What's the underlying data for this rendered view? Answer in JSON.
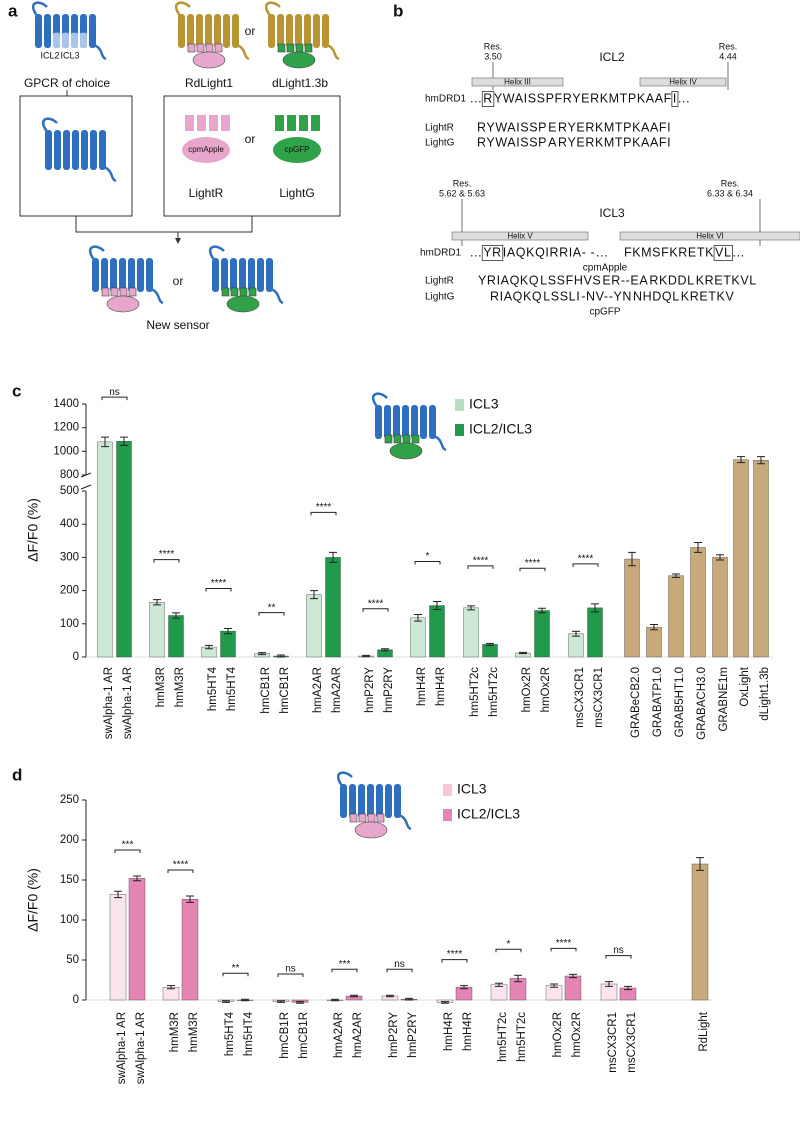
{
  "panel_a": {
    "label": "a",
    "icl2": "ICL2",
    "icl3": "ICL3",
    "gpcr": "GPCR of choice",
    "rdlight": "RdLight1",
    "or": "or",
    "dlight": "dLight1.3b",
    "cpmapple": "cpmApple",
    "cpgfp": "cpGFP",
    "lightr": "LightR",
    "lightg": "LightG",
    "new_sensor": "New sensor"
  },
  "panel_b": {
    "label": "b",
    "icl2": {
      "title": "ICL2",
      "res_left": [
        "Res.",
        "3.50"
      ],
      "helix_left": "Helix III",
      "helix_right": "Helix IV",
      "res_right": [
        "Res.",
        "4.44"
      ],
      "rows": [
        {
          "name": "hmDRD1",
          "segments": [
            {
              "text": "...",
              "color": "#111"
            },
            {
              "text": "R",
              "color": "#111",
              "boxed": true
            },
            {
              "text": "YWAISSPFRYERKMTPKAAF",
              "color": "#111"
            },
            {
              "text": "I",
              "color": "#111",
              "boxed": true
            },
            {
              "text": "...",
              "color": "#111"
            }
          ]
        },
        {
          "name": "LightR",
          "segments": [
            {
              "text": "RYWAISSP",
              "color": "#111"
            },
            {
              "text": "E",
              "color": "#f0a020"
            },
            {
              "text": "RYERKMTPKAAFI",
              "color": "#111"
            }
          ]
        },
        {
          "name": "LightG",
          "segments": [
            {
              "text": "RYWAISSP",
              "color": "#111"
            },
            {
              "text": "A",
              "color": "#f0a020"
            },
            {
              "text": "RYERKMTPKAAFI",
              "color": "#111"
            }
          ]
        }
      ]
    },
    "icl3": {
      "title": "ICL3",
      "res_left": [
        "Res.",
        "5.62 & 5.63"
      ],
      "helix_left": "Helix V",
      "helix_right": "Helix VI",
      "res_right": [
        "Res.",
        "6.33 & 6.34"
      ],
      "insert_r": "cpmApple",
      "insert_g": "cpGFP",
      "rows": [
        {
          "name": "hmDRD1",
          "segments": [
            {
              "text": "...",
              "color": "#111"
            },
            {
              "text": "YR",
              "color": "#111",
              "boxed": true
            },
            {
              "text": "IAQKQIRRIA- -",
              "color": "#111"
            },
            {
              "text": "...",
              "color": "#111"
            },
            {
              "text": "FKMSFKRETK",
              "color": "#111"
            },
            {
              "text": "VL",
              "color": "#111",
              "boxed": true
            },
            {
              "text": "...",
              "color": "#111"
            }
          ]
        },
        {
          "name": "LightR",
          "segments": [
            {
              "text": "YRIAQKQ",
              "color": "#111"
            },
            {
              "text": "LSSFHVS",
              "color": "#f0a020"
            },
            {
              "text": "ER--EA",
              "color": "#e05aa0"
            },
            {
              "text": "RKDDL",
              "color": "#f0a020"
            },
            {
              "text": "KRETKVL",
              "color": "#111"
            }
          ]
        },
        {
          "name": "LightG",
          "segments": [
            {
              "text": "RIAQKQ",
              "color": "#111"
            },
            {
              "text": "LSSLI",
              "color": "#f0a020"
            },
            {
              "text": "-NV--YN",
              "color": "#2a9a3a"
            },
            {
              "text": "NHDQL",
              "color": "#f0a020"
            },
            {
              "text": "KRETKV",
              "color": "#111"
            }
          ]
        }
      ]
    }
  },
  "chart_data": [
    {
      "type": "bar",
      "panel_label": "c",
      "ylabel": "ΔF/F0 (%)",
      "categories": [
        "swAlpha-1 AR",
        "swAlpha-1 AR",
        "hmM3R",
        "hmM3R",
        "hm5HT4",
        "hm5HT4",
        "hmCB1R",
        "hmCB1R",
        "hmA2AR",
        "hmA2AR",
        "hmP2RY",
        "hmP2RY",
        "hmH4R",
        "hmH4R",
        "hm5HT2c",
        "hm5HT2c",
        "hmOx2R",
        "hmOx2R",
        "msCX3CR1",
        "msCX3CR1",
        "GRABeCB2.0",
        "GRABATP1.0",
        "GRAB5HT1.0",
        "GRABACH3.0",
        "GRABNE1m",
        "OxLight",
        "dLight1.3b"
      ],
      "values": [
        1080,
        1085,
        165,
        125,
        30,
        78,
        10,
        3,
        188,
        300,
        3,
        22,
        118,
        155,
        148,
        38,
        12,
        140,
        70,
        148,
        295,
        90,
        245,
        330,
        300,
        930,
        925
      ],
      "errors": [
        40,
        35,
        8,
        8,
        5,
        8,
        3,
        3,
        12,
        15,
        2,
        3,
        10,
        12,
        6,
        3,
        2,
        7,
        7,
        12,
        20,
        8,
        5,
        15,
        8,
        25,
        30
      ],
      "colors": [
        "#cde9d5",
        "#1f9a4a",
        "#cde9d5",
        "#1f9a4a",
        "#cde9d5",
        "#1f9a4a",
        "#cde9d5",
        "#1f9a4a",
        "#cde9d5",
        "#1f9a4a",
        "#cde9d5",
        "#1f9a4a",
        "#cde9d5",
        "#1f9a4a",
        "#cde9d5",
        "#1f9a4a",
        "#cde9d5",
        "#1f9a4a",
        "#cde9d5",
        "#1f9a4a",
        "#c8a97c",
        "#c8a97c",
        "#c8a97c",
        "#c8a97c",
        "#c8a97c",
        "#c8a97c",
        "#c8a97c"
      ],
      "legend": [
        {
          "name": "ICL3",
          "color": "#b6dfc2"
        },
        {
          "name": "ICL2/ICL3",
          "color": "#1f9a4a"
        }
      ],
      "ylim": [
        0,
        500
      ],
      "yticks": [
        0,
        100,
        200,
        300,
        400,
        500
      ],
      "axis_break": {
        "ylim": [
          800,
          1400
        ],
        "yticks": [
          800,
          1000,
          1200,
          1400
        ]
      },
      "significance": [
        "ns",
        "****",
        "****",
        "**",
        "****",
        "****",
        "*",
        "****",
        "****",
        "****"
      ]
    },
    {
      "type": "bar",
      "panel_label": "d",
      "ylabel": "ΔF/F0 (%)",
      "categories": [
        "swAlpha-1 AR",
        "swAlpha-1 AR",
        "hmM3R",
        "hmM3R",
        "hm5HT4",
        "hm5HT4",
        "hmCB1R",
        "hmCB1R",
        "hmA2AR",
        "hmA2AR",
        "hmP2RY",
        "hmP2RY",
        "hmH4R",
        "hmH4R",
        "hm5HT2c",
        "hm5HT2c",
        "hmOx2R",
        "hmOx2R",
        "msCX3CR1",
        "msCX3CR1",
        "RdLight"
      ],
      "values": [
        132,
        152,
        16,
        126,
        -2,
        0,
        -2,
        -3,
        0,
        5,
        5,
        1,
        -3,
        16,
        19,
        27,
        18,
        30,
        20,
        15,
        170
      ],
      "errors": [
        4,
        3,
        2,
        4,
        1,
        1,
        1,
        1,
        1,
        1,
        1,
        1,
        1,
        2,
        2,
        4,
        2,
        2,
        3,
        2,
        8
      ],
      "colors": [
        "#fbe4ee",
        "#e585b6",
        "#fbe4ee",
        "#e585b6",
        "#fbe4ee",
        "#e585b6",
        "#fbe4ee",
        "#e585b6",
        "#fbe4ee",
        "#e585b6",
        "#fbe4ee",
        "#e585b6",
        "#fbe4ee",
        "#e585b6",
        "#fbe4ee",
        "#e585b6",
        "#fbe4ee",
        "#e585b6",
        "#fbe4ee",
        "#e585b6",
        "#c8a97c"
      ],
      "legend": [
        {
          "name": "ICL3",
          "color": "#f6c6dc"
        },
        {
          "name": "ICL2/ICL3",
          "color": "#e585b6"
        }
      ],
      "ylim": [
        0,
        250
      ],
      "yticks": [
        0,
        50,
        100,
        150,
        200,
        250
      ],
      "significance": [
        "***",
        "****",
        "**",
        "ns",
        "***",
        "ns",
        "****",
        "*",
        "****",
        "ns"
      ]
    }
  ]
}
